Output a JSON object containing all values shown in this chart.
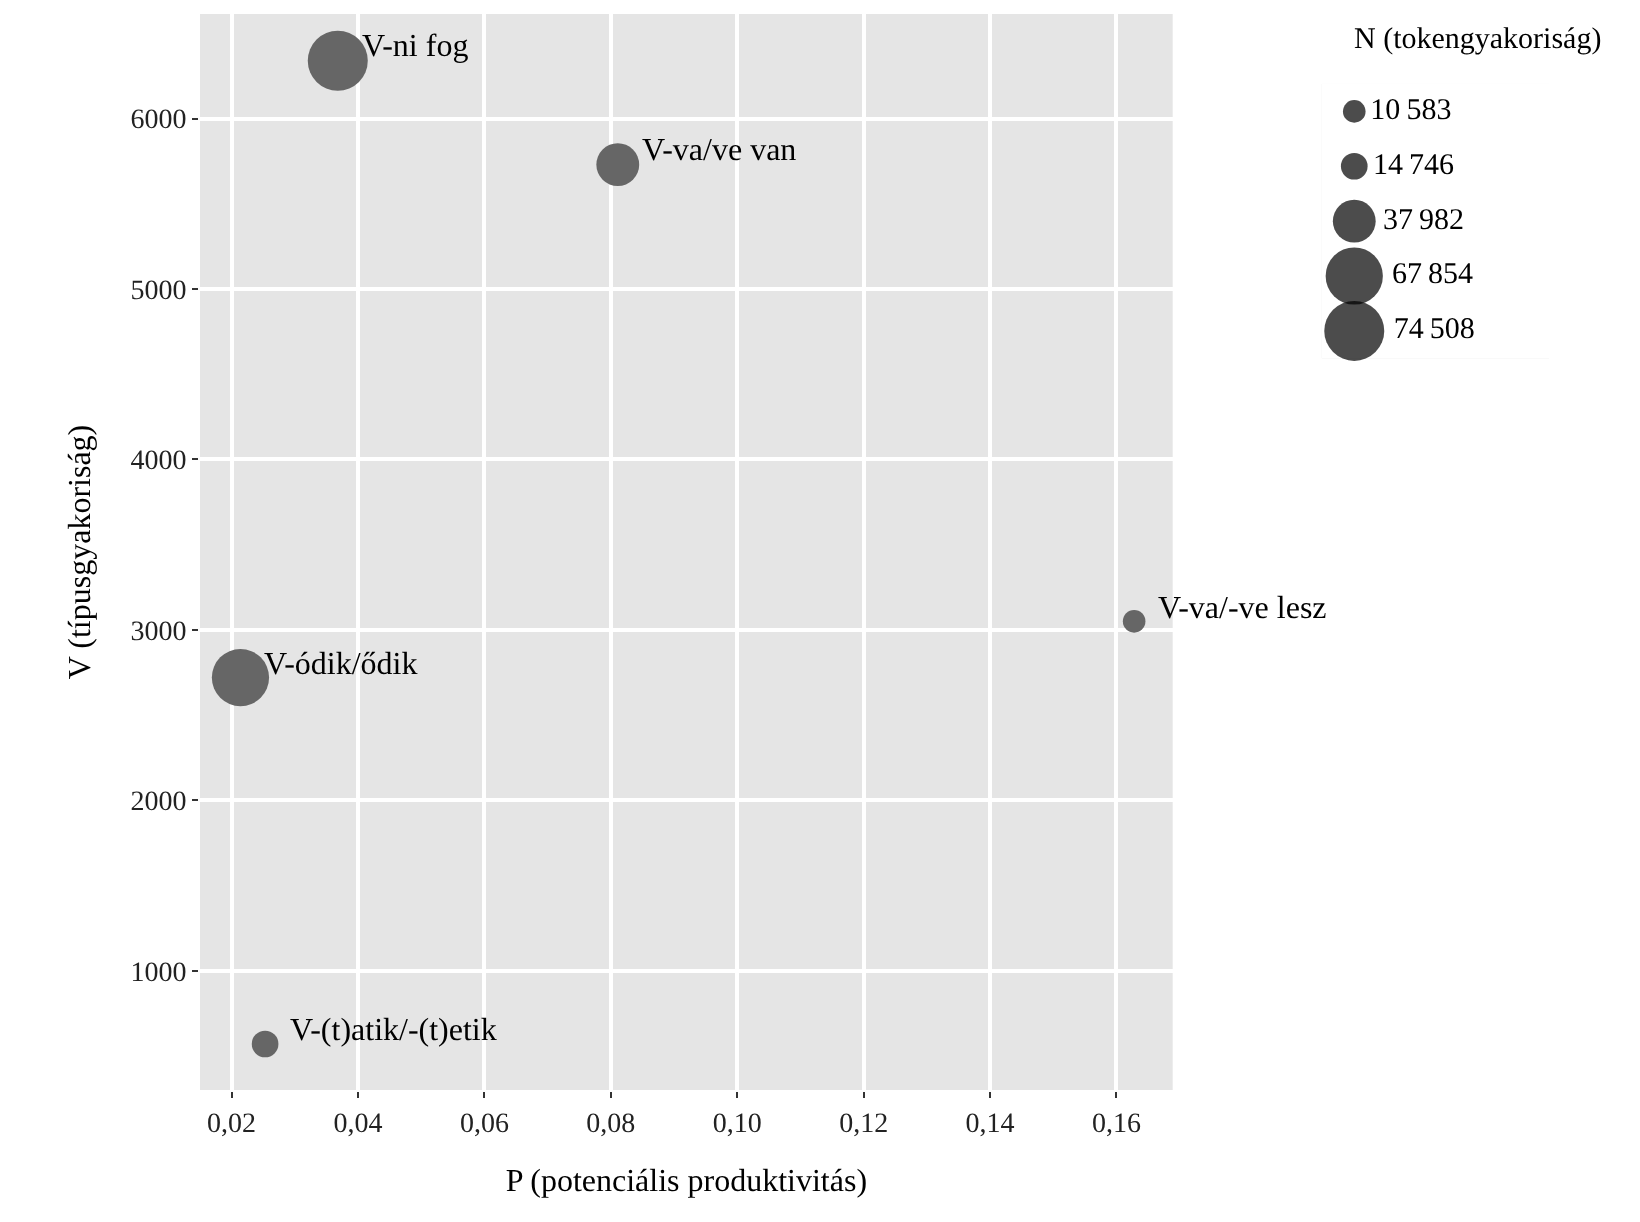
{
  "chart_data": {
    "type": "bubble",
    "xlabel": "P (potenciális produktivitás)",
    "ylabel": "V (típusgyakoriság)",
    "legend_title": "N (tokengyakoriság)",
    "x": [
      0.0368,
      0.0811,
      0.1628,
      0.0214,
      0.0253
    ],
    "series": [
      {
        "color": "#666666",
        "values": [
          6340,
          5730,
          3050,
          2720,
          570
        ],
        "sizes": [
          74508,
          37982,
          10583,
          67854,
          14746
        ]
      }
    ],
    "size_legend": [
      10583,
      14746,
      37982,
      67854,
      74508
    ],
    "annotations": [
      {
        "text": "V-ni fog",
        "x": 0.0368,
        "y": 6340
      },
      {
        "text": "V-va/ve van",
        "x": 0.0811,
        "y": 5730
      },
      {
        "text": "V-va/-ve lesz",
        "x": 0.1628,
        "y": 3050
      },
      {
        "text": "V-ódik/ődik",
        "x": 0.0214,
        "y": 2720
      },
      {
        "text": "V-(t)atik/-(t)etik",
        "x": 0.0253,
        "y": 570
      }
    ],
    "xlim": [
      0.015,
      0.1689
    ],
    "ylim": [
      300,
      6614
    ],
    "xticks": [
      {
        "value": 0.02,
        "label": "0,02"
      },
      {
        "value": 0.04,
        "label": "0,04"
      },
      {
        "value": 0.06,
        "label": "0,06"
      },
      {
        "value": 0.08,
        "label": "0,08"
      },
      {
        "value": 0.1,
        "label": "0,10"
      },
      {
        "value": 0.12,
        "label": "0,12"
      },
      {
        "value": 0.14,
        "label": "0,14"
      },
      {
        "value": 0.16,
        "label": "0,16"
      }
    ],
    "yticks": [
      1000,
      2000,
      3000,
      4000,
      5000,
      6000
    ],
    "grid": true
  }
}
